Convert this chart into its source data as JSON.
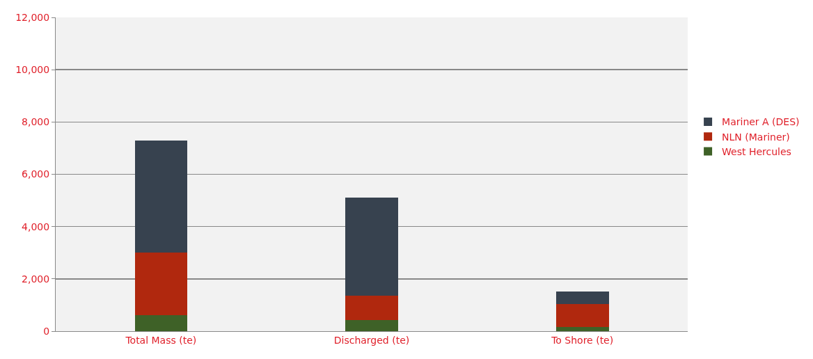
{
  "chart_data": {
    "type": "bar",
    "stacked": true,
    "categories": [
      "Total Mass (te)",
      "Discharged (te)",
      "To Shore (te)"
    ],
    "series": [
      {
        "name": "West Hercules",
        "color": "#3e6127",
        "values": [
          600,
          420,
          150
        ]
      },
      {
        "name": "NLN (Mariner)",
        "color": "#b0280e",
        "values": [
          2400,
          930,
          900
        ]
      },
      {
        "name": "Mariner A (DES)",
        "color": "#37424f",
        "values": [
          4300,
          3750,
          480
        ]
      }
    ],
    "ylim": [
      0,
      12000
    ],
    "yticks": [
      {
        "value": 0,
        "label": "0"
      },
      {
        "value": 2000,
        "label": "2,000"
      },
      {
        "value": 4000,
        "label": "4,000"
      },
      {
        "value": 6000,
        "label": "6,000"
      },
      {
        "value": 8000,
        "label": "8,000"
      },
      {
        "value": 10000,
        "label": "10,000"
      },
      {
        "value": 12000,
        "label": "12,000"
      }
    ],
    "grid": "y",
    "legend": "right"
  }
}
